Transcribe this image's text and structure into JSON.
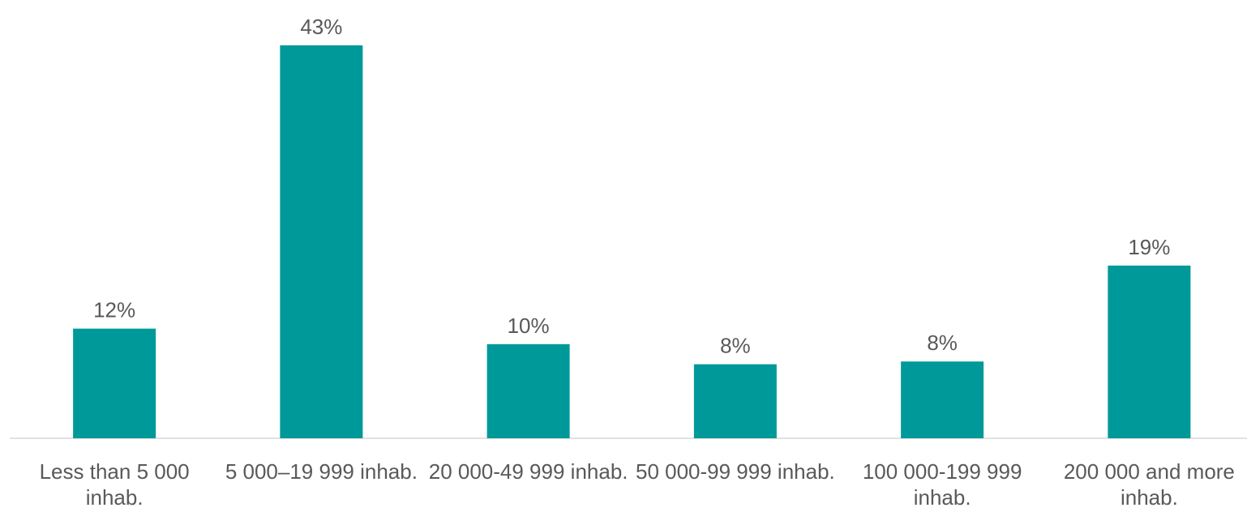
{
  "chart_data": {
    "type": "bar",
    "categories": [
      "Less than 5 000 inhab.",
      "5 000–19 999 inhab.",
      "20 000-49 999 inhab.",
      "50 000-99 999 inhab.",
      "100 000-199 999 inhab.",
      "200 000 and more inhab."
    ],
    "values": [
      12,
      43,
      10.3,
      8.1,
      8.4,
      18.9
    ],
    "value_labels": [
      "12%",
      "43%",
      "10%",
      "8%",
      "8%",
      "19%"
    ],
    "color": "#009999",
    "ylim": [
      0,
      45
    ]
  }
}
